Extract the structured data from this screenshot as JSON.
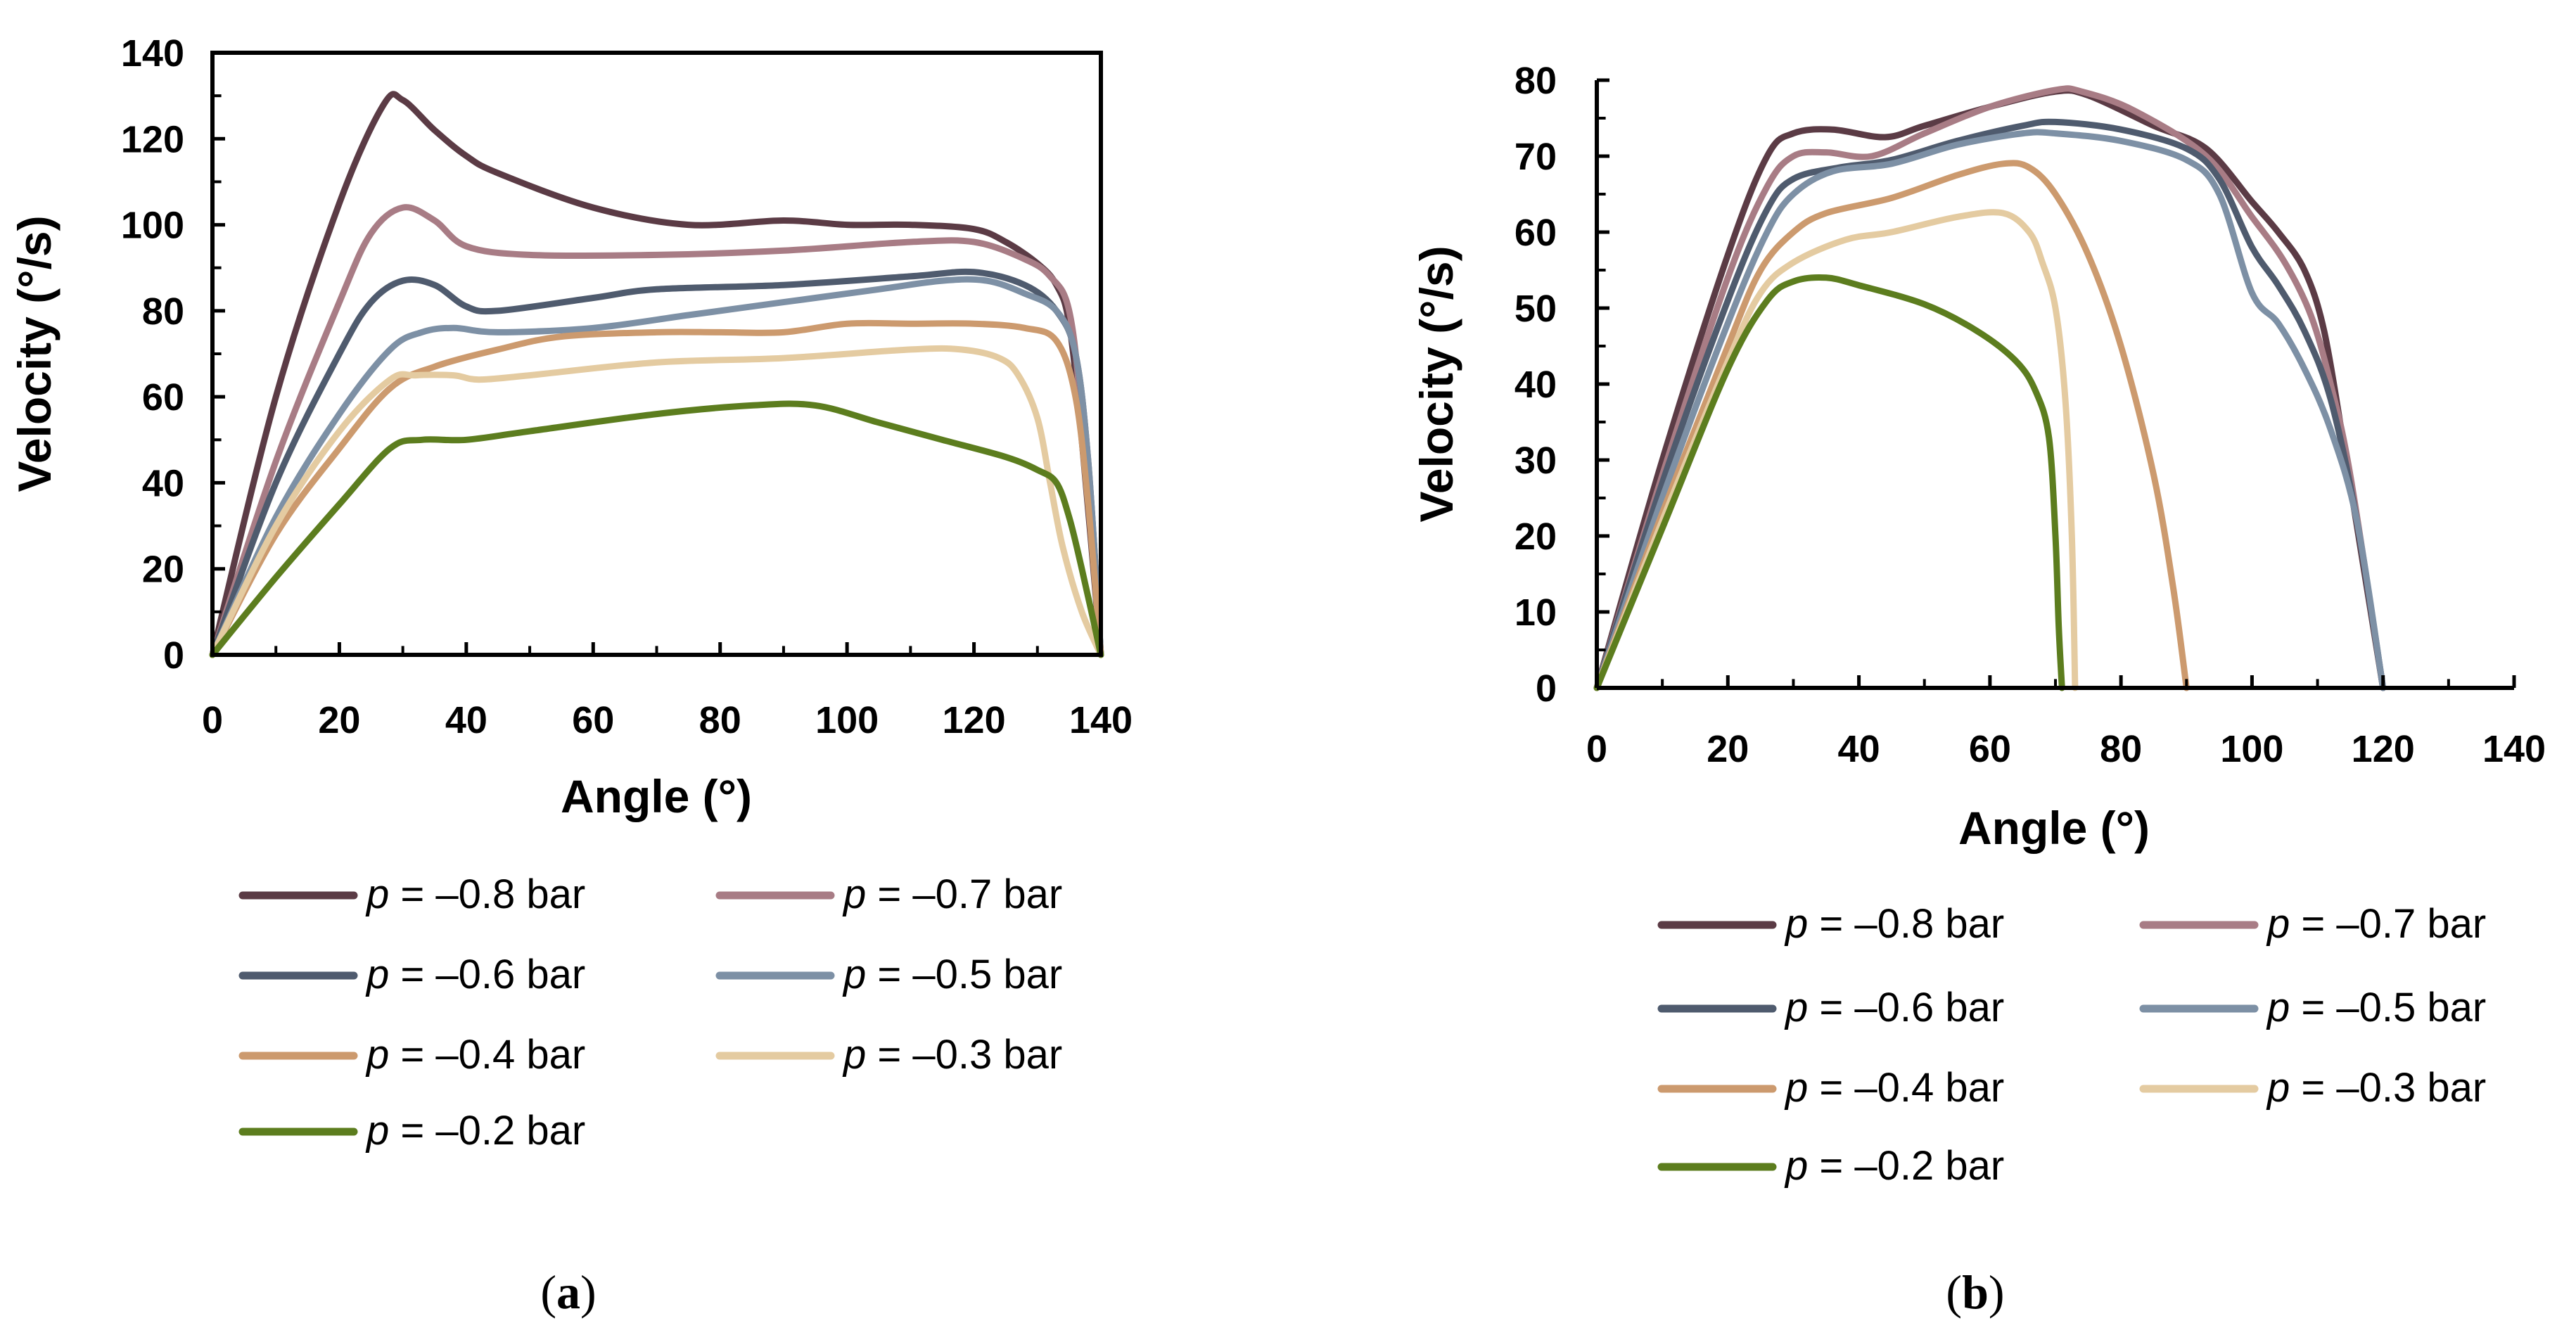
{
  "chart_data": [
    {
      "type": "line",
      "panel_label": "a",
      "xlabel": "Angle (°)",
      "ylabel": "Velocity (°/s)",
      "xlim": [
        0,
        140
      ],
      "ylim": [
        0,
        140
      ],
      "xticks": [
        0,
        20,
        40,
        60,
        80,
        100,
        120,
        140
      ],
      "yticks": [
        0,
        20,
        40,
        60,
        80,
        100,
        120,
        140
      ],
      "grid": false,
      "legend_position": "below",
      "series": [
        {
          "name": "p = –0.8 bar",
          "prefix": "p",
          "suffix": " = –0.8 bar",
          "color": "#5b3b45",
          "points": [
            [
              0,
              0
            ],
            [
              10,
              60
            ],
            [
              20,
              105
            ],
            [
              27,
              128
            ],
            [
              30,
              129
            ],
            [
              35,
              122
            ],
            [
              40,
              116
            ],
            [
              45,
              112
            ],
            [
              60,
              104
            ],
            [
              75,
              100
            ],
            [
              90,
              101
            ],
            [
              100,
              100
            ],
            [
              110,
              100
            ],
            [
              120,
              99
            ],
            [
              125,
              96
            ],
            [
              130,
              91
            ],
            [
              133,
              86
            ],
            [
              135,
              77
            ],
            [
              137,
              50
            ],
            [
              140,
              0
            ]
          ]
        },
        {
          "name": "p = –0.7 bar",
          "prefix": "p",
          "suffix": " = –0.7 bar",
          "color": "#a87c85",
          "points": [
            [
              0,
              0
            ],
            [
              10,
              45
            ],
            [
              20,
              82
            ],
            [
              25,
              98
            ],
            [
              30,
              104
            ],
            [
              35,
              101
            ],
            [
              40,
              95
            ],
            [
              50,
              93
            ],
            [
              70,
              93
            ],
            [
              90,
              94
            ],
            [
              110,
              96
            ],
            [
              120,
              96
            ],
            [
              128,
              92
            ],
            [
              132,
              88
            ],
            [
              135,
              80
            ],
            [
              137,
              55
            ],
            [
              140,
              0
            ]
          ]
        },
        {
          "name": "p = –0.6 bar",
          "prefix": "p",
          "suffix": " = –0.6 bar",
          "color": "#4f5b6e",
          "points": [
            [
              0,
              0
            ],
            [
              10,
              40
            ],
            [
              20,
              70
            ],
            [
              25,
              82
            ],
            [
              30,
              87
            ],
            [
              35,
              86
            ],
            [
              40,
              81
            ],
            [
              45,
              80
            ],
            [
              60,
              83
            ],
            [
              70,
              85
            ],
            [
              90,
              86
            ],
            [
              110,
              88
            ],
            [
              120,
              89
            ],
            [
              128,
              86
            ],
            [
              133,
              80
            ],
            [
              136,
              70
            ],
            [
              138,
              45
            ],
            [
              140,
              0
            ]
          ]
        },
        {
          "name": "p = –0.5 bar",
          "prefix": "p",
          "suffix": " = –0.5 bar",
          "color": "#7d90a5",
          "points": [
            [
              0,
              0
            ],
            [
              10,
              32
            ],
            [
              20,
              56
            ],
            [
              28,
              71
            ],
            [
              33,
              75
            ],
            [
              38,
              76
            ],
            [
              45,
              75
            ],
            [
              60,
              76
            ],
            [
              75,
              79
            ],
            [
              90,
              82
            ],
            [
              105,
              85
            ],
            [
              115,
              87
            ],
            [
              122,
              87
            ],
            [
              128,
              84
            ],
            [
              133,
              80
            ],
            [
              136,
              70
            ],
            [
              138,
              45
            ],
            [
              140,
              0
            ]
          ]
        },
        {
          "name": "p = –0.4 bar",
          "prefix": "p",
          "suffix": " = –0.4 bar",
          "color": "#cc9a6e",
          "points": [
            [
              0,
              0
            ],
            [
              10,
              28
            ],
            [
              20,
              48
            ],
            [
              28,
              62
            ],
            [
              35,
              67
            ],
            [
              45,
              71
            ],
            [
              55,
              74
            ],
            [
              70,
              75
            ],
            [
              80,
              75
            ],
            [
              90,
              75
            ],
            [
              100,
              77
            ],
            [
              110,
              77
            ],
            [
              120,
              77
            ],
            [
              128,
              76
            ],
            [
              133,
              73
            ],
            [
              136,
              60
            ],
            [
              138,
              35
            ],
            [
              140,
              0
            ]
          ]
        },
        {
          "name": "p = –0.3 bar",
          "prefix": "p",
          "suffix": " = –0.3 bar",
          "color": "#e4cba1",
          "points": [
            [
              0,
              0
            ],
            [
              10,
              30
            ],
            [
              20,
              52
            ],
            [
              28,
              64
            ],
            [
              32,
              65
            ],
            [
              38,
              65
            ],
            [
              42,
              64
            ],
            [
              50,
              65
            ],
            [
              70,
              68
            ],
            [
              90,
              69
            ],
            [
              110,
              71
            ],
            [
              118,
              71
            ],
            [
              124,
              69
            ],
            [
              127,
              65
            ],
            [
              130,
              55
            ],
            [
              132,
              40
            ],
            [
              134,
              25
            ],
            [
              137,
              10
            ],
            [
              140,
              0
            ]
          ]
        },
        {
          "name": "p = –0.2 bar",
          "prefix": "p",
          "suffix": " = –0.2 bar",
          "color": "#5c7d1e",
          "points": [
            [
              0,
              0
            ],
            [
              10,
              18
            ],
            [
              20,
              35
            ],
            [
              28,
              48
            ],
            [
              33,
              50
            ],
            [
              40,
              50
            ],
            [
              50,
              52
            ],
            [
              70,
              56
            ],
            [
              85,
              58
            ],
            [
              95,
              58
            ],
            [
              105,
              54
            ],
            [
              115,
              50
            ],
            [
              125,
              46
            ],
            [
              130,
              43
            ],
            [
              133,
              40
            ],
            [
              135,
              32
            ],
            [
              137,
              20
            ],
            [
              140,
              0
            ]
          ]
        }
      ]
    },
    {
      "type": "line",
      "panel_label": "b",
      "xlabel": "Angle (°)",
      "ylabel": "Velocity (°/s)",
      "xlim": [
        0,
        140
      ],
      "ylim": [
        0,
        80
      ],
      "xticks": [
        0,
        20,
        40,
        60,
        80,
        100,
        120,
        140
      ],
      "yticks": [
        0,
        10,
        20,
        30,
        40,
        50,
        60,
        70,
        80
      ],
      "grid": false,
      "legend_position": "below",
      "series": [
        {
          "name": "p = –0.8 bar",
          "prefix": "p",
          "suffix": " = –0.8 bar",
          "color": "#5b3b45",
          "points": [
            [
              0,
              0
            ],
            [
              10,
              30
            ],
            [
              20,
              57
            ],
            [
              26,
              70
            ],
            [
              30,
              73
            ],
            [
              36,
              73.5
            ],
            [
              44,
              72.5
            ],
            [
              50,
              74
            ],
            [
              60,
              76.5
            ],
            [
              70,
              78.5
            ],
            [
              75,
              78
            ],
            [
              85,
              74
            ],
            [
              93,
              71
            ],
            [
              100,
              64
            ],
            [
              104,
              60
            ],
            [
              108,
              55
            ],
            [
              111,
              47
            ],
            [
              114,
              32
            ],
            [
              117,
              16
            ],
            [
              120,
              0
            ]
          ]
        },
        {
          "name": "p = –0.7 bar",
          "prefix": "p",
          "suffix": " = –0.7 bar",
          "color": "#a87c85",
          "points": [
            [
              0,
              0
            ],
            [
              10,
              28
            ],
            [
              20,
              54
            ],
            [
              26,
              66
            ],
            [
              30,
              70
            ],
            [
              35,
              70.5
            ],
            [
              42,
              70
            ],
            [
              50,
              73
            ],
            [
              60,
              76.5
            ],
            [
              70,
              78.7
            ],
            [
              74,
              78.5
            ],
            [
              82,
              76
            ],
            [
              93,
              70
            ],
            [
              100,
              62
            ],
            [
              105,
              56
            ],
            [
              109,
              49
            ],
            [
              112,
              40
            ],
            [
              115,
              28
            ],
            [
              120,
              0
            ]
          ]
        },
        {
          "name": "p = –0.6 bar",
          "prefix": "p",
          "suffix": " = –0.6 bar",
          "color": "#4f5b6e",
          "points": [
            [
              0,
              0
            ],
            [
              10,
              27
            ],
            [
              20,
              51
            ],
            [
              26,
              63
            ],
            [
              30,
              67
            ],
            [
              37,
              68.5
            ],
            [
              45,
              69.5
            ],
            [
              55,
              72
            ],
            [
              65,
              74
            ],
            [
              70,
              74.5
            ],
            [
              80,
              73.5
            ],
            [
              90,
              71
            ],
            [
              95,
              67
            ],
            [
              100,
              58
            ],
            [
              104,
              53
            ],
            [
              108,
              47
            ],
            [
              112,
              38
            ],
            [
              116,
              22
            ],
            [
              120,
              0
            ]
          ]
        },
        {
          "name": "p = –0.5 bar",
          "prefix": "p",
          "suffix": " = –0.5 bar",
          "color": "#7d90a5",
          "points": [
            [
              0,
              0
            ],
            [
              10,
              25
            ],
            [
              20,
              48
            ],
            [
              26,
              60
            ],
            [
              30,
              65
            ],
            [
              36,
              68
            ],
            [
              45,
              69
            ],
            [
              55,
              71.5
            ],
            [
              65,
              73
            ],
            [
              70,
              73
            ],
            [
              80,
              72
            ],
            [
              90,
              69.5
            ],
            [
              95,
              65
            ],
            [
              100,
              52
            ],
            [
              104,
              48
            ],
            [
              108,
              42
            ],
            [
              112,
              34
            ],
            [
              116,
              22
            ],
            [
              120,
              0
            ]
          ]
        },
        {
          "name": "p = –0.4 bar",
          "prefix": "p",
          "suffix": " = –0.4 bar",
          "color": "#cc9a6e",
          "points": [
            [
              0,
              0
            ],
            [
              10,
              23
            ],
            [
              20,
              45
            ],
            [
              25,
              55
            ],
            [
              30,
              60
            ],
            [
              35,
              62.5
            ],
            [
              45,
              64.5
            ],
            [
              55,
              67.5
            ],
            [
              62,
              69
            ],
            [
              66,
              68.5
            ],
            [
              70,
              65
            ],
            [
              75,
              57
            ],
            [
              80,
              45
            ],
            [
              85,
              28
            ],
            [
              88,
              13
            ],
            [
              90,
              0
            ]
          ]
        },
        {
          "name": "p = –0.3 bar",
          "prefix": "p",
          "suffix": " = –0.3 bar",
          "color": "#e4cba1",
          "points": [
            [
              0,
              0
            ],
            [
              10,
              22
            ],
            [
              20,
              43
            ],
            [
              25,
              52
            ],
            [
              30,
              56
            ],
            [
              38,
              59
            ],
            [
              45,
              60
            ],
            [
              55,
              62
            ],
            [
              62,
              62.5
            ],
            [
              66,
              60
            ],
            [
              68,
              56
            ],
            [
              70,
              50
            ],
            [
              71.5,
              38
            ],
            [
              72.5,
              20
            ],
            [
              73,
              0
            ]
          ]
        },
        {
          "name": "p = –0.2 bar",
          "prefix": "p",
          "suffix": " = –0.2 bar",
          "color": "#5c7d1e",
          "points": [
            [
              0,
              0
            ],
            [
              10,
              21
            ],
            [
              20,
              42
            ],
            [
              26,
              51
            ],
            [
              30,
              53.5
            ],
            [
              35,
              54
            ],
            [
              40,
              53
            ],
            [
              50,
              50.5
            ],
            [
              58,
              47
            ],
            [
              64,
              43
            ],
            [
              67,
              39
            ],
            [
              69,
              33
            ],
            [
              70,
              20
            ],
            [
              70.5,
              8
            ],
            [
              71,
              0
            ]
          ]
        }
      ]
    }
  ]
}
